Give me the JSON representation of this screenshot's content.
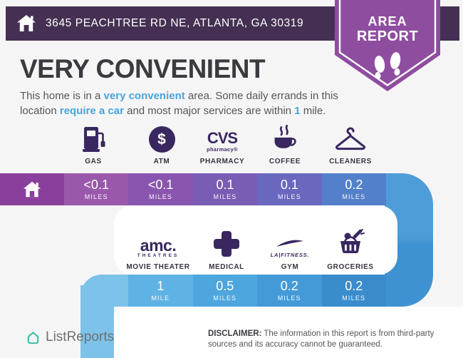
{
  "palette": {
    "topbar_bg": "#453053",
    "badge_bg": "#8f4da0",
    "accent_blue": "#4aa4da",
    "icon_purple": "#392760",
    "home_cell": "#8b3f9c",
    "connector_right_top": "#4f9dd8",
    "connector_right_bottom": "#3f92d2",
    "left_strip": "#7dc3e9",
    "brand_teal": "#3ebda9"
  },
  "header": {
    "address": "3645 PEACHTREE RD NE, ATLANTA, GA 30319",
    "badge": {
      "line1": "AREA",
      "line2": "REPORT"
    }
  },
  "summary": {
    "title": "VERY CONVENIENT",
    "description_parts": [
      {
        "text": "This home is in a ",
        "highlight": false
      },
      {
        "text": "very convenient",
        "highlight": true
      },
      {
        "text": " area. Some daily errands in this location ",
        "highlight": false
      },
      {
        "text": "require a car",
        "highlight": true
      },
      {
        "text": " and most major services are within ",
        "highlight": false
      },
      {
        "text": "1",
        "highlight": true
      },
      {
        "text": " mile.",
        "highlight": false
      }
    ]
  },
  "rows": [
    {
      "places": [
        {
          "label": "GAS",
          "icon": "gas-pump-icon",
          "distance_value": "<0.1",
          "distance_unit": "MILES",
          "color": "#9a58ab"
        },
        {
          "label": "ATM",
          "icon": "dollar-circle-icon",
          "logo": {
            "symbol": "$"
          },
          "distance_value": "<0.1",
          "distance_unit": "MILES",
          "color": "#8a55ae"
        },
        {
          "label": "PHARMACY",
          "icon": "cvs-pharmacy-logo",
          "logo": {
            "line1": "CVS",
            "line2": "pharmacy®"
          },
          "distance_value": "0.1",
          "distance_unit": "MILES",
          "color": "#795cb4"
        },
        {
          "label": "COFFEE",
          "icon": "coffee-cup-icon",
          "distance_value": "0.1",
          "distance_unit": "MILES",
          "color": "#6a68be"
        },
        {
          "label": "CLEANERS",
          "icon": "clothes-hanger-icon",
          "distance_value": "0.2",
          "distance_unit": "MILES",
          "color": "#5380ca"
        }
      ]
    },
    {
      "places": [
        {
          "label": "MOVIE THEATER",
          "icon": "amc-theatres-logo",
          "logo": {
            "line1": "amc.",
            "line2": "THEATRES"
          },
          "distance_value": "1",
          "distance_unit": "MILE",
          "color": "#5fb2e4"
        },
        {
          "label": "MEDICAL",
          "icon": "medical-cross-icon",
          "distance_value": "0.5",
          "distance_unit": "MILES",
          "color": "#4da6de"
        },
        {
          "label": "GYM",
          "icon": "la-fitness-logo",
          "logo": {
            "line1": "LA|FITNESS."
          },
          "distance_value": "0.2",
          "distance_unit": "MILES",
          "color": "#439ad7"
        },
        {
          "label": "GROCERIES",
          "icon": "grocery-basket-icon",
          "distance_value": "0.2",
          "distance_unit": "MILES",
          "color": "#3a8ccd"
        }
      ]
    }
  ],
  "footer": {
    "brand": "ListReports",
    "disclaimer_label": "DISCLAIMER:",
    "disclaimer_text": " The information in this report is from third-party sources and its accuracy cannot be guaranteed."
  }
}
